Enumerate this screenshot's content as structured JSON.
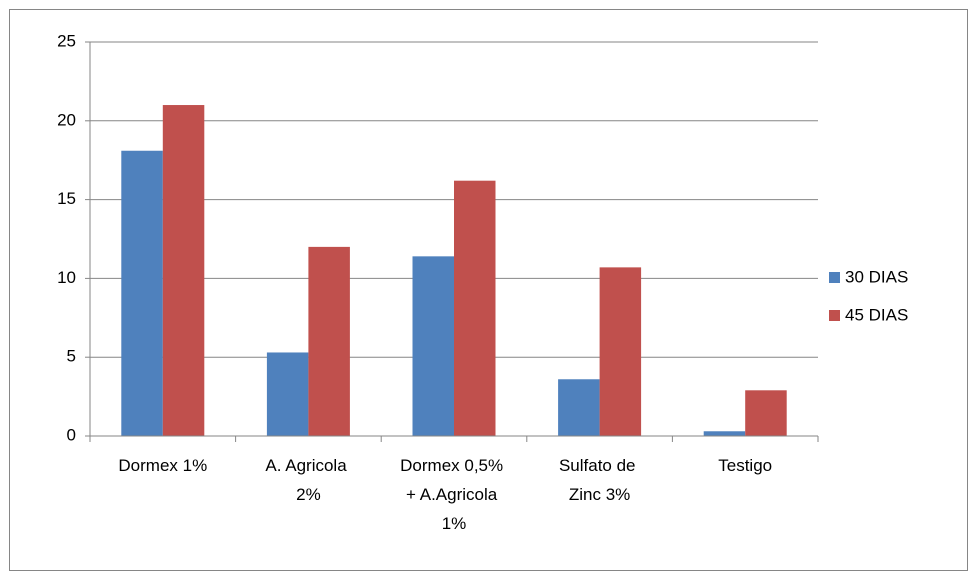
{
  "chart_data": {
    "type": "bar",
    "categories": [
      "Dormex 1%",
      "A. Agricola 2%",
      "Dormex 0,5% + A.Agricola 1%",
      "Sulfato de Zinc 3%",
      "Testigo"
    ],
    "series": [
      {
        "name": "30 DIAS",
        "color": "#4f81bd",
        "values": [
          18.1,
          5.3,
          11.4,
          3.6,
          0.3
        ]
      },
      {
        "name": "45 DIAS",
        "color": "#c0504d",
        "values": [
          21.0,
          12.0,
          16.2,
          10.7,
          2.9
        ]
      }
    ],
    "ylim": [
      0,
      25
    ],
    "yticks": [
      0,
      5,
      10,
      15,
      20,
      25
    ],
    "grid": true,
    "legend": "right"
  }
}
